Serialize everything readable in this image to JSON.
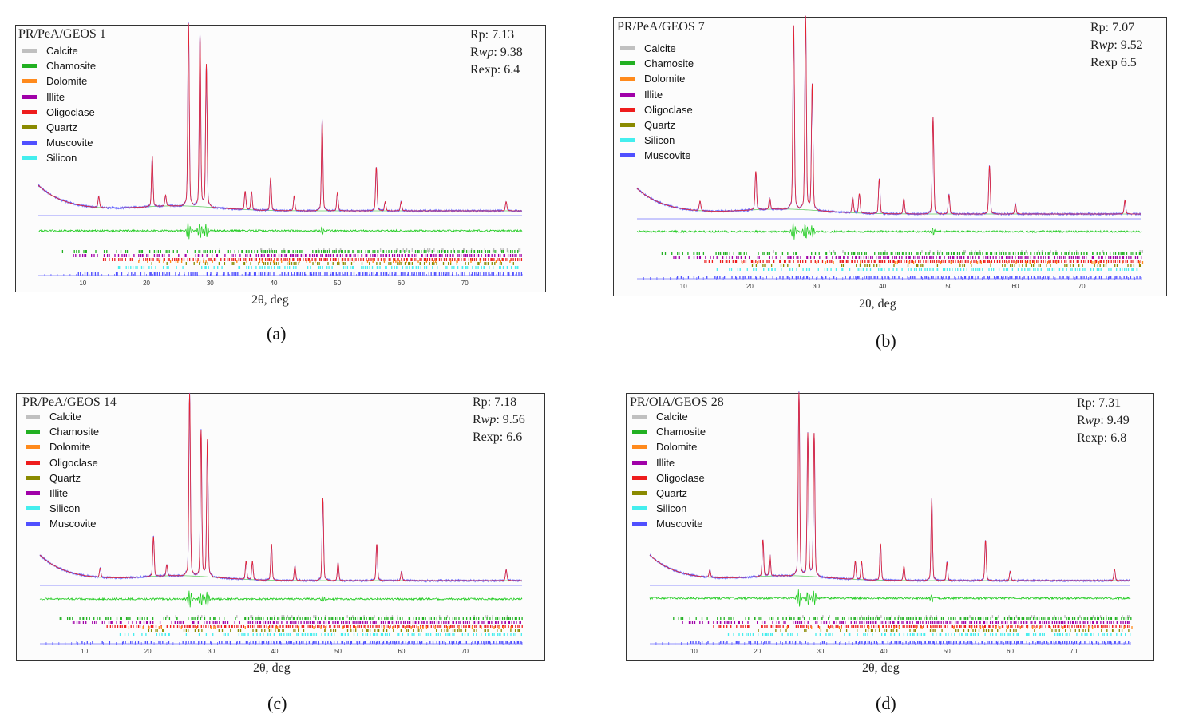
{
  "colors": {
    "Calcite": "#c0c0c0",
    "Chamosite": "#22b022",
    "Dolomite": "#ff8a1c",
    "Illite": "#a000a8",
    "Oligoclase": "#ee1c1c",
    "Quartz": "#8a8a00",
    "Muscovite": "#5050ff",
    "Silicon": "#44eeee",
    "calc_curve": "#e8222c",
    "obs_curve": "#6464ff",
    "background_curve": "#66cc66",
    "difference_curve": "#22cc22",
    "zero_line": "#7070ff"
  },
  "chart_data": [
    {
      "id": "a",
      "type": "line",
      "title": "PR/PeA/GEOS 1",
      "caption": "(a)",
      "xlabel": "2θ, deg",
      "xlim": [
        3,
        79
      ],
      "xticks": [
        10,
        20,
        30,
        40,
        50,
        60,
        70
      ],
      "stats": {
        "rp": "Rp: 7.13",
        "rwp_label": "R",
        "rwp_italic": "wp",
        "rwp_value": ": 9.38",
        "rexp": "Rexp: 6.4"
      },
      "legend": [
        "Calcite",
        "Chamosite",
        "Dolomite",
        "Illite",
        "Oligoclase",
        "Quartz",
        "Muscovite",
        "Silicon"
      ],
      "peaks": [
        [
          20.9,
          0.28
        ],
        [
          26.6,
          1.0
        ],
        [
          28.4,
          0.95
        ],
        [
          29.4,
          0.78
        ],
        [
          47.6,
          0.5
        ],
        [
          39.5,
          0.18
        ],
        [
          56.1,
          0.24
        ],
        [
          35.5,
          0.1
        ],
        [
          36.5,
          0.1
        ],
        [
          12.5,
          0.06
        ],
        [
          23.0,
          0.06
        ],
        [
          50.0,
          0.1
        ],
        [
          43.2,
          0.08
        ],
        [
          57.5,
          0.05
        ],
        [
          60.0,
          0.05
        ],
        [
          76.5,
          0.05
        ]
      ]
    },
    {
      "id": "b",
      "type": "line",
      "title": "PR/PeA/GEOS 7",
      "caption": "(b)",
      "xlabel": "2θ, deg",
      "xlim": [
        3,
        79
      ],
      "xticks": [
        10,
        20,
        30,
        40,
        50,
        60,
        70
      ],
      "stats": {
        "rp": "Rp: 7.07",
        "rwp_label": "R",
        "rwp_italic": "wp",
        "rwp_value": ": 9.52",
        "rexp": "Rexp 6.5"
      },
      "legend": [
        "Calcite",
        "Chamosite",
        "Dolomite",
        "Illite",
        "Oligoclase",
        "Quartz",
        "Silicon",
        "Muscovite"
      ],
      "peaks": [
        [
          20.9,
          0.2
        ],
        [
          26.6,
          0.95
        ],
        [
          28.4,
          1.0
        ],
        [
          29.4,
          0.65
        ],
        [
          47.6,
          0.5
        ],
        [
          39.5,
          0.18
        ],
        [
          56.1,
          0.25
        ],
        [
          35.5,
          0.08
        ],
        [
          36.5,
          0.1
        ],
        [
          12.5,
          0.05
        ],
        [
          23.0,
          0.06
        ],
        [
          50.0,
          0.1
        ],
        [
          43.2,
          0.08
        ],
        [
          60.0,
          0.05
        ],
        [
          76.5,
          0.07
        ]
      ]
    },
    {
      "id": "c",
      "type": "line",
      "title": "PR/PeA/GEOS 14",
      "caption": "(c)",
      "xlabel": "2θ, deg",
      "xlim": [
        3,
        79
      ],
      "xticks": [
        10,
        20,
        30,
        40,
        50,
        60,
        70
      ],
      "stats": {
        "rp": "Rp: 7.18",
        "rwp_label": "R",
        "rwp_italic": "wp",
        "rwp_value": ": 9.56",
        "rexp": "Rexp: 6.6"
      },
      "legend": [
        "Calcite",
        "Chamosite",
        "Dolomite",
        "Oligoclase",
        "Quartz",
        "Illite",
        "Silicon",
        "Muscovite"
      ],
      "peaks": [
        [
          20.9,
          0.22
        ],
        [
          26.6,
          1.0
        ],
        [
          28.4,
          0.8
        ],
        [
          29.4,
          0.75
        ],
        [
          47.6,
          0.45
        ],
        [
          39.5,
          0.2
        ],
        [
          56.1,
          0.2
        ],
        [
          35.5,
          0.1
        ],
        [
          36.5,
          0.1
        ],
        [
          12.5,
          0.05
        ],
        [
          23.0,
          0.06
        ],
        [
          50.0,
          0.1
        ],
        [
          43.2,
          0.08
        ],
        [
          60.0,
          0.05
        ],
        [
          76.5,
          0.06
        ]
      ]
    },
    {
      "id": "d",
      "type": "line",
      "title": "PR/OlA/GEOS 28",
      "caption": "(d)",
      "xlabel": "2θ, deg",
      "xlim": [
        3,
        79
      ],
      "xticks": [
        10,
        20,
        30,
        40,
        50,
        60,
        70
      ],
      "stats": {
        "rp": "Rp: 7.31",
        "rwp_label": "R",
        "rwp_italic": "wp",
        "rwp_value": ": 9.49",
        "rexp": "Rexp: 6.8"
      },
      "legend": [
        "Calcite",
        "Chamosite",
        "Dolomite",
        "Illite",
        "Oligoclase",
        "Quartz",
        "Silicon",
        "Muscovite"
      ],
      "peaks": [
        [
          20.9,
          0.2
        ],
        [
          26.6,
          1.0
        ],
        [
          28.0,
          0.78
        ],
        [
          29.0,
          0.78
        ],
        [
          47.6,
          0.45
        ],
        [
          39.5,
          0.2
        ],
        [
          56.1,
          0.22
        ],
        [
          22.0,
          0.12
        ],
        [
          35.5,
          0.1
        ],
        [
          36.5,
          0.1
        ],
        [
          12.5,
          0.04
        ],
        [
          50.0,
          0.1
        ],
        [
          43.2,
          0.08
        ],
        [
          60.0,
          0.05
        ],
        [
          76.5,
          0.06
        ]
      ]
    }
  ]
}
